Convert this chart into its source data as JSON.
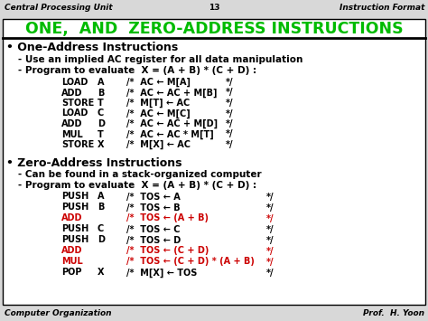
{
  "title": "ONE,  AND  ZERO-ADDRESS INSTRUCTIONS",
  "title_color": "#00BB00",
  "header_left": "Central Processing Unit",
  "header_center": "13",
  "header_right": "Instruction Format",
  "footer_left": "Computer Organization",
  "footer_right": "Prof.  H. Yoon",
  "bg_color": "#D8D8D8",
  "content_bg": "#FFFFFF",
  "one_address_title": "• One-Address Instructions",
  "one_address_sub1": "- Use an implied AC register for all data manipulation",
  "one_address_sub2": "- Program to evaluate  X = (A + B) * (C + D) :",
  "one_address_instructions": [
    [
      "LOAD",
      "A",
      "/*  AC ← M[A]",
      "*/"
    ],
    [
      "ADD",
      "B",
      "/*  AC ← AC + M[B]",
      "*/"
    ],
    [
      "STORE",
      "T",
      "/*  M[T] ← AC",
      "*/"
    ],
    [
      "LOAD",
      "C",
      "/*  AC ← M[C]",
      "*/"
    ],
    [
      "ADD",
      "D",
      "/*  AC ← AC + M[D]",
      "*/"
    ],
    [
      "MUL",
      "T",
      "/*  AC ← AC * M[T]",
      "*/"
    ],
    [
      "STORE",
      "X",
      "/*  M[X] ← AC",
      "*/"
    ]
  ],
  "one_instr_colors": [
    "black",
    "black",
    "black",
    "black",
    "black",
    "black",
    "black"
  ],
  "zero_address_title": "• Zero-Address Instructions",
  "zero_address_sub1": "- Can be found in a stack-organized computer",
  "zero_address_sub2": "- Program to evaluate  X = (A + B) * (C + D) :",
  "zero_address_instructions": [
    [
      "PUSH",
      "A",
      "/*  TOS ← A",
      "*/"
    ],
    [
      "PUSH",
      "B",
      "/*  TOS ← B",
      "*/"
    ],
    [
      "ADD",
      "",
      "/*  TOS ← (A + B)",
      "*/"
    ],
    [
      "PUSH",
      "C",
      "/*  TOS ← C",
      "*/"
    ],
    [
      "PUSH",
      "D",
      "/*  TOS ← D",
      "*/"
    ],
    [
      "ADD",
      "",
      "/*  TOS ← (C + D)",
      "*/"
    ],
    [
      "MUL",
      "",
      "/*  TOS ← (C + D) * (A + B)",
      "*/"
    ],
    [
      "POP",
      "X",
      "/*  M[X] ← TOS",
      "*/"
    ]
  ],
  "zero_instr_colors": [
    "black",
    "black",
    "#CC0000",
    "black",
    "black",
    "#CC0000",
    "#CC0000",
    "black"
  ]
}
